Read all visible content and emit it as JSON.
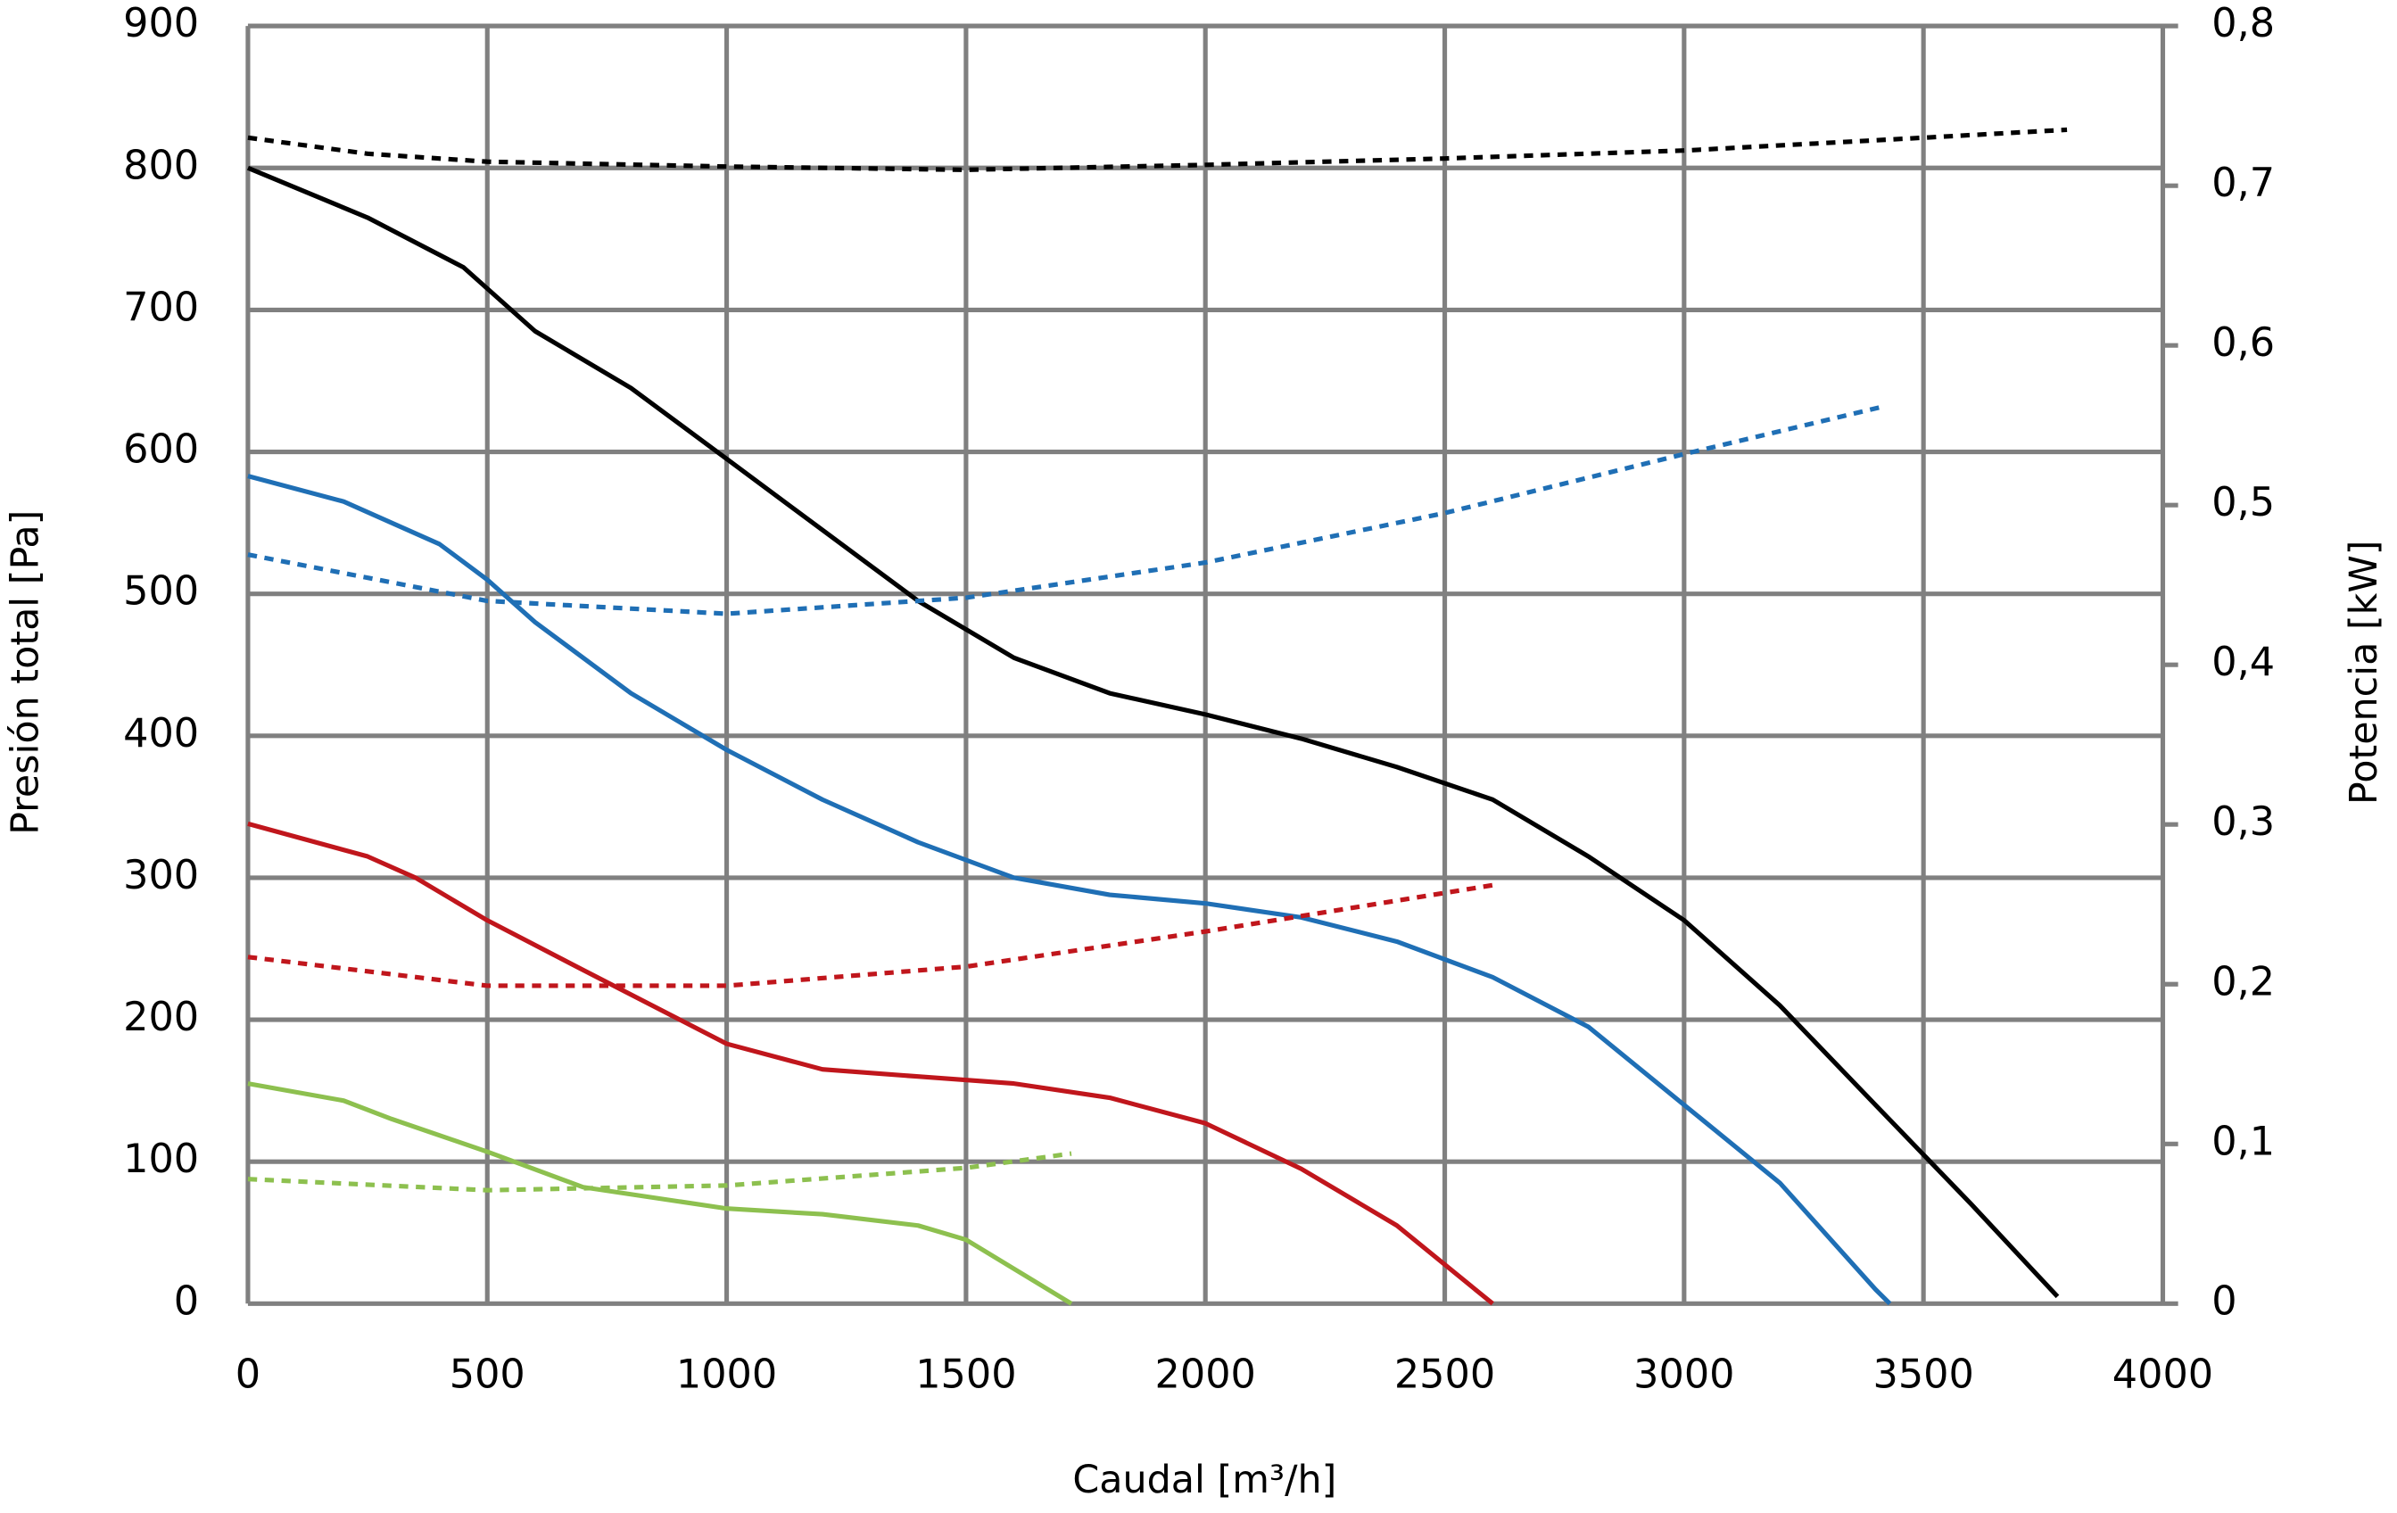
{
  "chart_data": {
    "type": "line",
    "xlabel": "Caudal [m³/h]",
    "ylabel": "Presión total [Pa]",
    "y2label": "Potencia [kW]",
    "xlim": [
      0,
      4000
    ],
    "xticks": [
      0,
      500,
      1000,
      1500,
      2000,
      2500,
      3000,
      3500,
      4000
    ],
    "ylim": [
      0,
      900
    ],
    "yticks": [
      0,
      100,
      200,
      300,
      400,
      500,
      600,
      700,
      800,
      900
    ],
    "y2lim": [
      0,
      0.8
    ],
    "y2ticks": [
      0,
      {
        "value": 0.1,
        "label": "0,1"
      },
      {
        "value": 0.2,
        "label": "0,2"
      },
      {
        "value": 0.3,
        "label": "0,3"
      },
      {
        "value": 0.4,
        "label": "0,4"
      },
      {
        "value": 0.5,
        "label": "0,5"
      },
      {
        "value": 0.6,
        "label": "0,6"
      },
      {
        "value": 0.7,
        "label": "0,7"
      },
      {
        "value": 0.8,
        "label": "0,8"
      }
    ],
    "grid": true,
    "series": [
      {
        "color": "#000000",
        "style": "solid",
        "x": [
          0,
          250,
          450,
          600,
          800,
          1000,
          1200,
          1400,
          1600,
          1800,
          2000,
          2200,
          2400,
          2600,
          2800,
          3000,
          3200,
          3400,
          3600,
          3780
        ],
        "values": [
          800,
          765,
          730,
          685,
          645,
          595,
          545,
          495,
          455,
          430,
          415,
          398,
          378,
          355,
          315,
          270,
          210,
          140,
          70,
          5
        ]
      },
      {
        "color": "#1f6fb5",
        "style": "solid",
        "x": [
          0,
          200,
          400,
          500,
          600,
          800,
          1000,
          1200,
          1400,
          1600,
          1800,
          2000,
          2200,
          2400,
          2600,
          2800,
          3000,
          3200,
          3400,
          3430
        ],
        "values": [
          583,
          565,
          535,
          510,
          480,
          430,
          390,
          355,
          325,
          300,
          288,
          282,
          272,
          255,
          230,
          195,
          140,
          85,
          10,
          0
        ]
      },
      {
        "color": "#c0161c",
        "style": "solid",
        "x": [
          0,
          250,
          350,
          500,
          700,
          1000,
          1200,
          1400,
          1600,
          1800,
          2000,
          2200,
          2400,
          2600
        ],
        "values": [
          338,
          315,
          300,
          270,
          235,
          183,
          165,
          160,
          155,
          145,
          127,
          95,
          55,
          0
        ]
      },
      {
        "color": "#8dc04f",
        "style": "solid",
        "x": [
          0,
          200,
          300,
          500,
          700,
          1000,
          1200,
          1400,
          1500,
          1720
        ],
        "values": [
          155,
          143,
          130,
          107,
          82,
          67,
          63,
          55,
          45,
          0
        ]
      },
      {
        "color": "#000000",
        "style": "dotted",
        "axis": "y2",
        "x": [
          0,
          250,
          500,
          1000,
          1500,
          2000,
          2500,
          3000,
          3500,
          3800
        ],
        "values": [
          0.73,
          0.72,
          0.715,
          0.712,
          0.71,
          0.713,
          0.717,
          0.722,
          0.73,
          0.735
        ]
      },
      {
        "color": "#1f6fb5",
        "style": "dotted",
        "axis": "y2",
        "x": [
          0,
          500,
          1000,
          1500,
          2000,
          2500,
          3000,
          3420
        ],
        "values": [
          0.469,
          0.44,
          0.432,
          0.442,
          0.464,
          0.495,
          0.532,
          0.562
        ]
      },
      {
        "color": "#c0161c",
        "style": "dotted",
        "axis": "y2",
        "x": [
          0,
          500,
          1000,
          1500,
          2000,
          2600
        ],
        "values": [
          0.217,
          0.199,
          0.199,
          0.211,
          0.233,
          0.262
        ]
      },
      {
        "color": "#8dc04f",
        "style": "dotted",
        "axis": "y2",
        "x": [
          0,
          500,
          1000,
          1500,
          1720
        ],
        "values": [
          0.078,
          0.071,
          0.074,
          0.085,
          0.094
        ]
      }
    ]
  }
}
